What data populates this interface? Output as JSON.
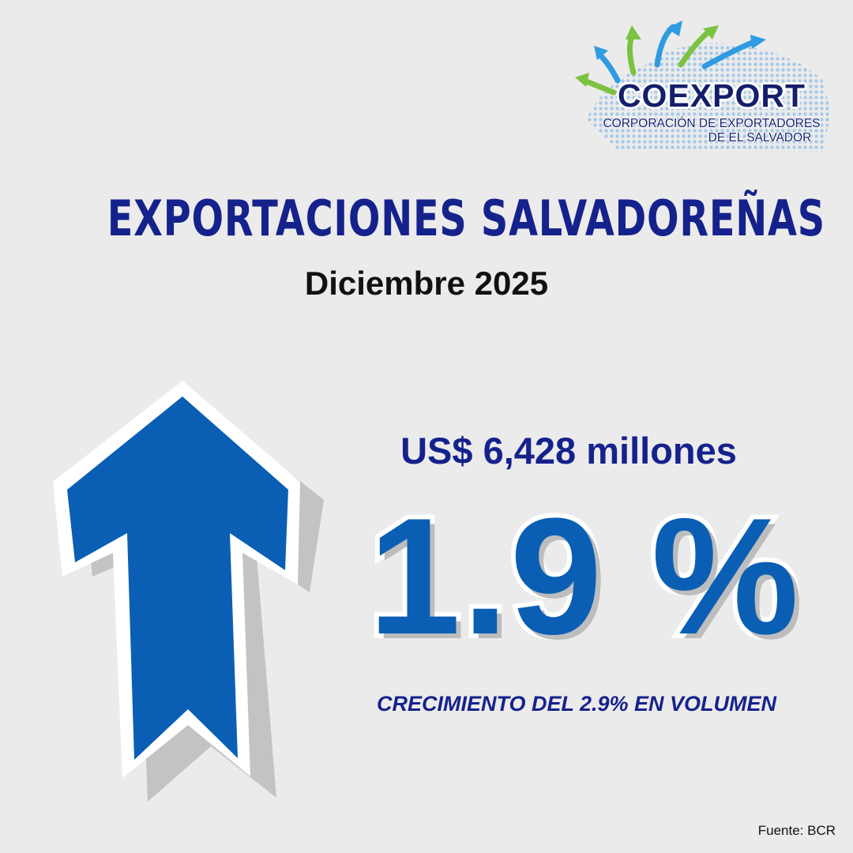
{
  "logo": {
    "name": "COEXPORT",
    "subtitle_line1": "CORPORACIÓN DE EXPORTADORES",
    "subtitle_line2": "DE EL SALVADOR",
    "icon": "world-map-arrows-icon"
  },
  "title": "EXPORTACIONES SALVADOREÑAS",
  "subtitle": "Diciembre 2025",
  "arrow_icon": "up-arrow-icon",
  "amount": "US$ 6,428 millones",
  "percentage": "1.9 %",
  "volume_note": "CRECIMIENTO DEL 2.9% EN VOLUMEN",
  "source": "Fuente: BCR",
  "colors": {
    "background": "#ecebec",
    "navy": "#15228c",
    "blue": "#0a5fb4",
    "green": "#7cc242",
    "light_blue": "#2f9be0"
  }
}
